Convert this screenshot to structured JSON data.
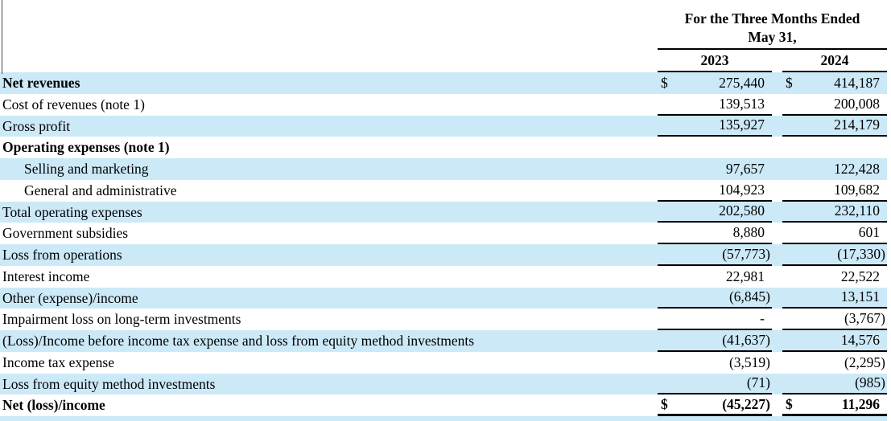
{
  "header": {
    "title_line1": "For the Three Months Ended",
    "title_line2": "May 31,"
  },
  "table": {
    "currency_symbol": "$",
    "columns": [
      "2023",
      "2024"
    ],
    "rows": [
      {
        "label": "Net revenues",
        "bold": true,
        "indent": false,
        "shaded": true,
        "dollar": true,
        "v2023": "275,440",
        "v2024": "414,187",
        "underline": false
      },
      {
        "label": "Cost of revenues (note 1)",
        "bold": false,
        "indent": false,
        "shaded": false,
        "dollar": false,
        "v2023": "139,513",
        "v2024": "200,008",
        "underline": true
      },
      {
        "label": "Gross profit",
        "bold": false,
        "indent": false,
        "shaded": true,
        "dollar": false,
        "v2023": "135,927",
        "v2024": "214,179",
        "underline": true
      },
      {
        "label": "Operating expenses (note 1)",
        "bold": true,
        "indent": false,
        "shaded": false,
        "dollar": false,
        "v2023": "",
        "v2024": "",
        "underline": false
      },
      {
        "label": "Selling and marketing",
        "bold": false,
        "indent": true,
        "shaded": true,
        "dollar": false,
        "v2023": "97,657",
        "v2024": "122,428",
        "underline": false
      },
      {
        "label": "General and administrative",
        "bold": false,
        "indent": true,
        "shaded": false,
        "dollar": false,
        "v2023": "104,923",
        "v2024": "109,682",
        "underline": true
      },
      {
        "label": "Total operating expenses",
        "bold": false,
        "indent": false,
        "shaded": true,
        "dollar": false,
        "v2023": "202,580",
        "v2024": "232,110",
        "underline": true
      },
      {
        "label": "Government subsidies",
        "bold": false,
        "indent": false,
        "shaded": false,
        "dollar": false,
        "v2023": "8,880",
        "v2024": "601",
        "underline": true
      },
      {
        "label": "Loss from operations",
        "bold": false,
        "indent": false,
        "shaded": true,
        "dollar": false,
        "v2023": "(57,773)",
        "v2024": "(17,330)",
        "underline": true
      },
      {
        "label": "Interest income",
        "bold": false,
        "indent": false,
        "shaded": false,
        "dollar": false,
        "v2023": "22,981",
        "v2024": "22,522",
        "underline": false
      },
      {
        "label": "Other (expense)/income",
        "bold": false,
        "indent": false,
        "shaded": true,
        "dollar": false,
        "v2023": "(6,845)",
        "v2024": "13,151",
        "underline": true
      },
      {
        "label": "Impairment loss on long-term investments",
        "bold": false,
        "indent": false,
        "shaded": false,
        "dollar": false,
        "v2023": "-",
        "v2024": "(3,767)",
        "underline": true
      },
      {
        "label": "(Loss)/Income before income tax expense and loss from equity method investments",
        "bold": false,
        "indent": false,
        "shaded": true,
        "dollar": false,
        "v2023": "(41,637)",
        "v2024": "14,576",
        "underline": true
      },
      {
        "label": "Income tax expense",
        "bold": false,
        "indent": false,
        "shaded": false,
        "dollar": false,
        "v2023": "(3,519)",
        "v2024": "(2,295)",
        "underline": false
      },
      {
        "label": "Loss from equity method investments",
        "bold": false,
        "indent": false,
        "shaded": true,
        "dollar": false,
        "v2023": "(71)",
        "v2024": "(985)",
        "underline": true
      },
      {
        "label": "Net (loss)/income",
        "bold": true,
        "indent": false,
        "shaded": false,
        "dollar": true,
        "v2023": "(45,227)",
        "v2024": "11,296",
        "underline": true,
        "final": true
      }
    ]
  },
  "colors": {
    "row_shade": "#cce9f8",
    "rule_color": "#000000",
    "text_color": "#000000"
  }
}
